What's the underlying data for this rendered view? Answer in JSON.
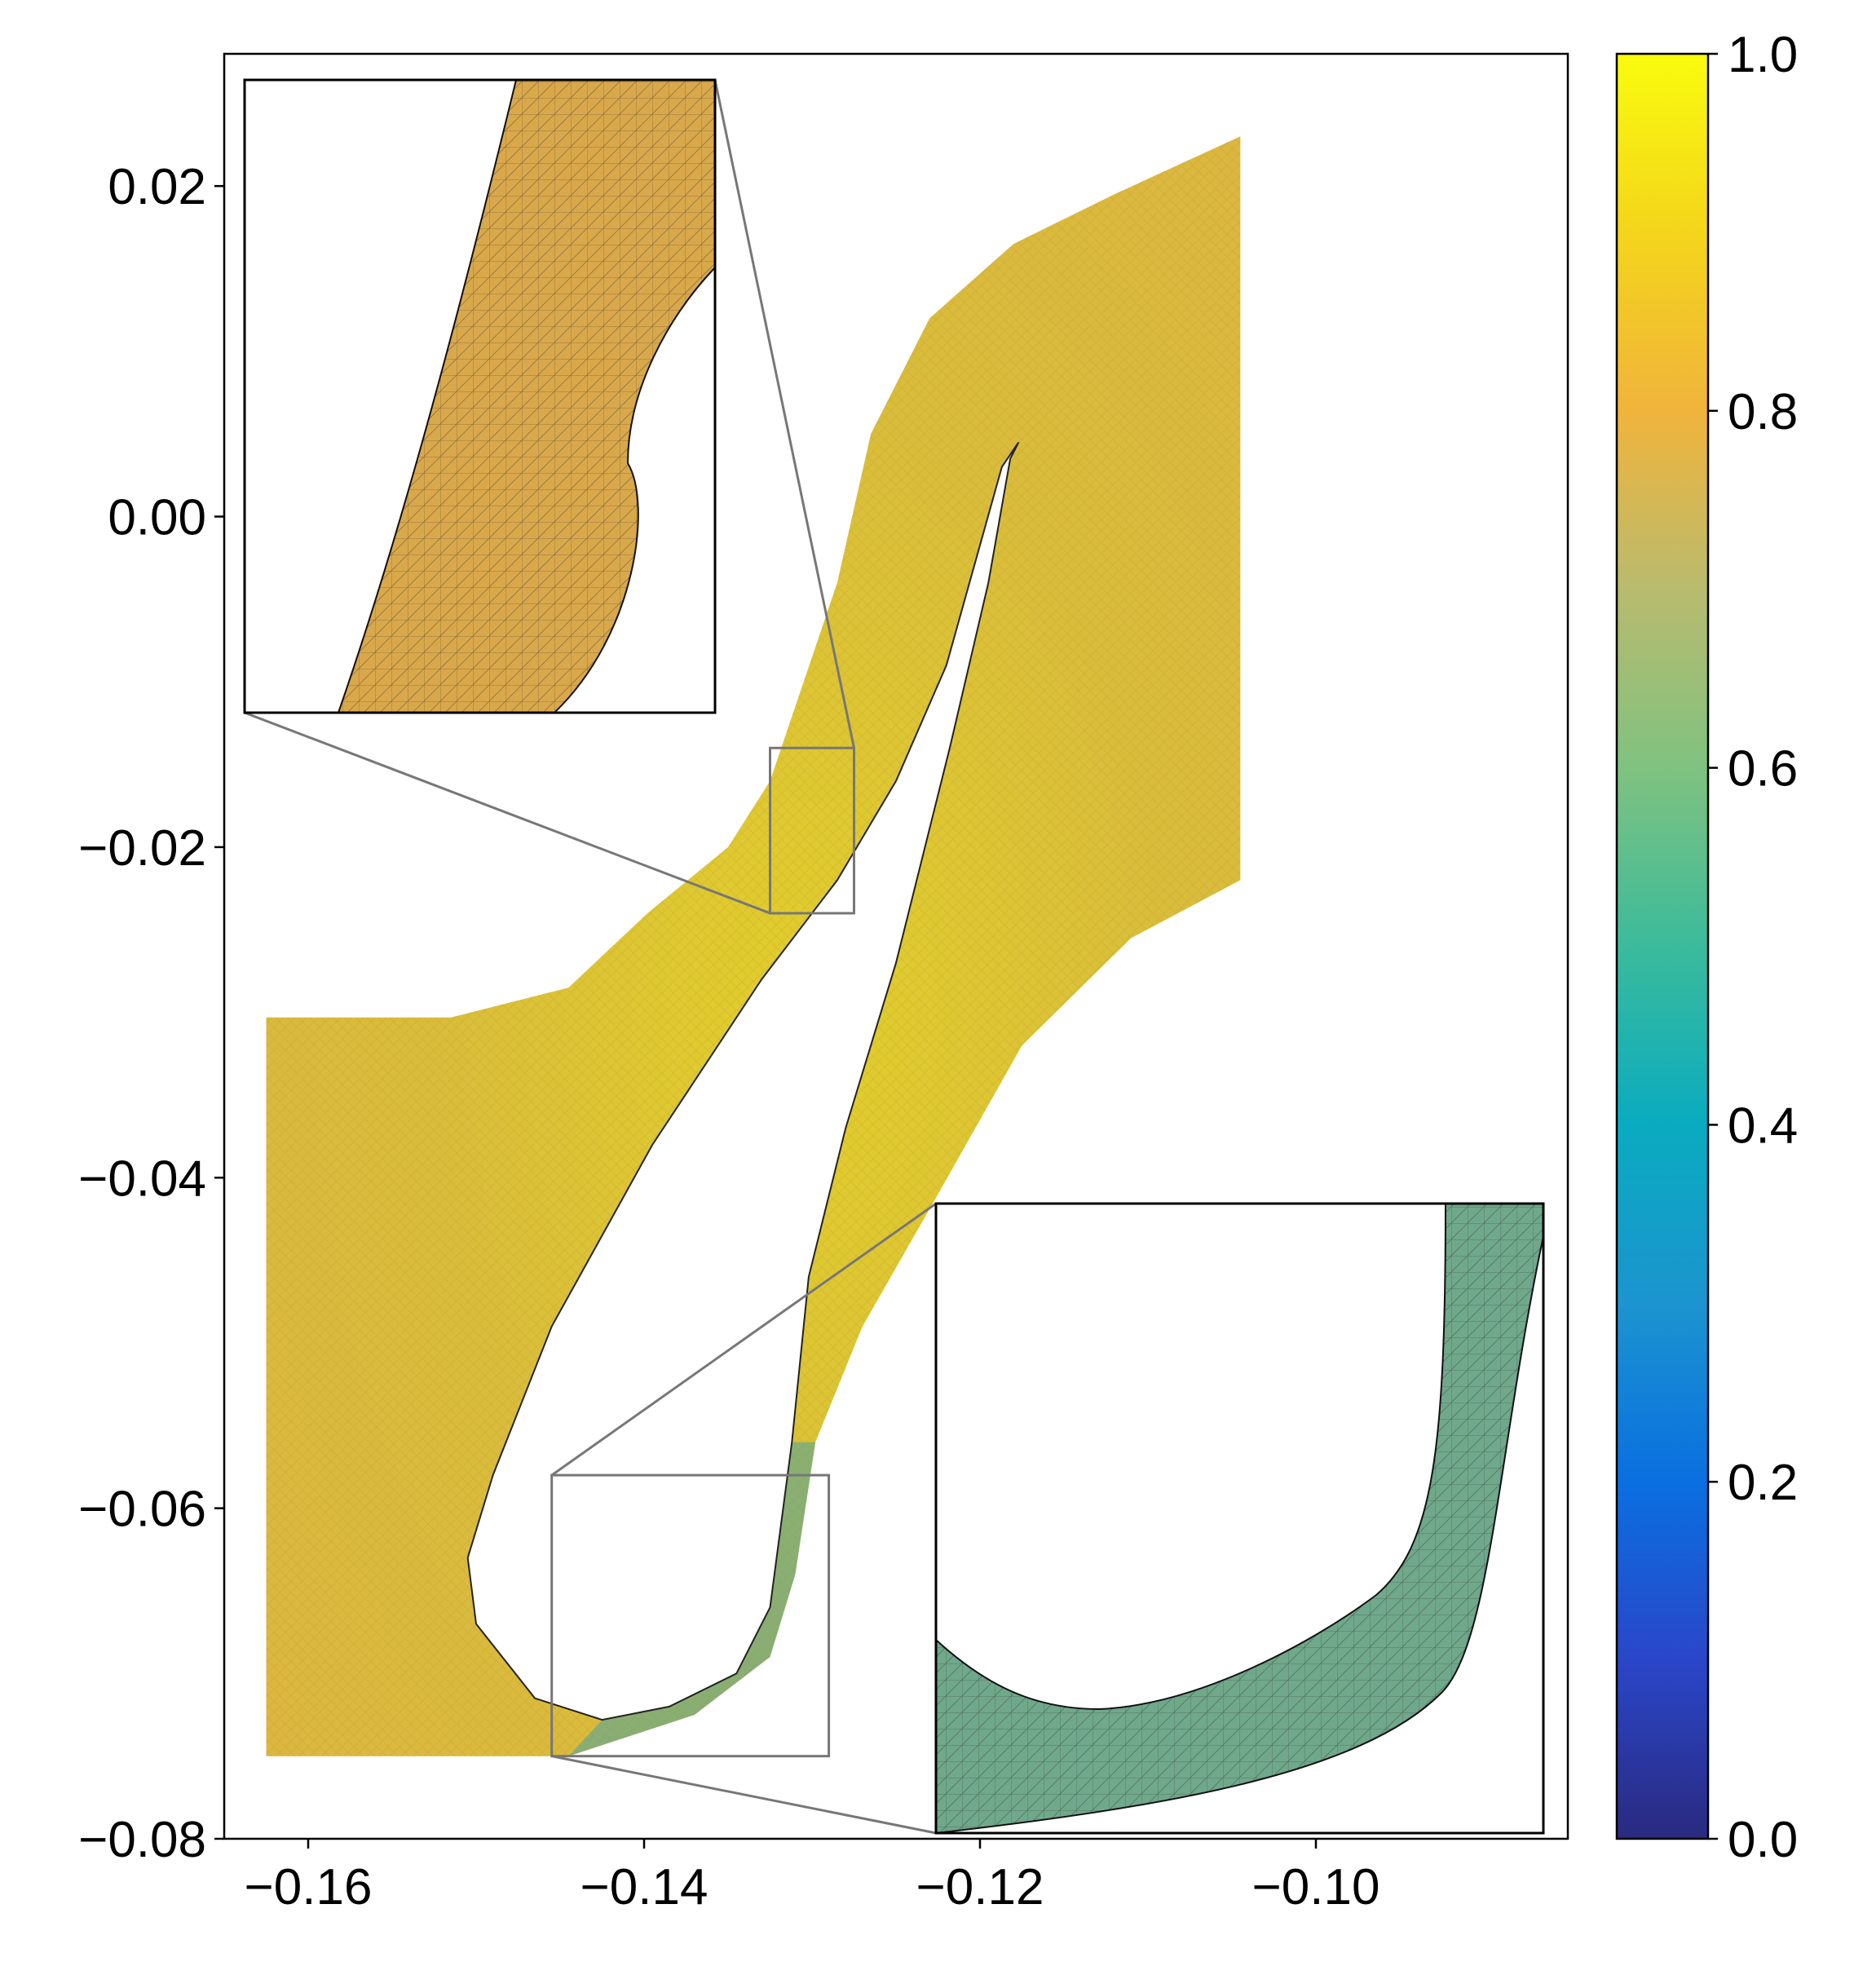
{
  "chart_data": {
    "type": "heatmap",
    "description_kind": "mesh quality field plotted over a triangulated 2D mesh",
    "title": "",
    "xlabel": "",
    "ylabel": "",
    "xlim": [
      -0.165,
      -0.085
    ],
    "ylim": [
      -0.08,
      0.028
    ],
    "x_ticks": [
      -0.16,
      -0.14,
      -0.12,
      -0.1
    ],
    "x_tick_labels": [
      "−0.16",
      "−0.14",
      "−0.12",
      "−0.10"
    ],
    "y_ticks": [
      0.02,
      0.0,
      -0.02,
      -0.04,
      -0.06,
      -0.08
    ],
    "y_tick_labels": [
      "0.02",
      "0.00",
      "−0.02",
      "−0.04",
      "−0.06",
      "−0.08"
    ],
    "colorbar": {
      "range": [
        0.0,
        1.0
      ],
      "ticks": [
        0.0,
        0.2,
        0.4,
        0.6,
        0.8,
        1.0
      ],
      "tick_labels": [
        "0.0",
        "0.2",
        "0.4",
        "0.6",
        "0.8",
        "1.0"
      ],
      "colormap_stops": [
        "#2a2a7f",
        "#2a46c9",
        "#0a6fe0",
        "#1c94cf",
        "#0aabc0",
        "#3bbb9b",
        "#80c280",
        "#b9bb6e",
        "#f0b43c",
        "#f4d51c",
        "#f9fb0e"
      ]
    },
    "domain_outline": {
      "left_channel": [
        [
          -0.1625,
          -0.0303
        ],
        [
          -0.1515,
          -0.0303
        ],
        [
          -0.1445,
          -0.0285
        ],
        [
          -0.1398,
          -0.024
        ],
        [
          -0.135,
          -0.02
        ],
        [
          -0.1325,
          -0.016
        ],
        [
          -0.1305,
          -0.01
        ],
        [
          -0.1285,
          -0.004
        ],
        [
          -0.1265,
          0.005
        ],
        [
          -0.123,
          0.012
        ],
        [
          -0.118,
          0.0165
        ],
        [
          -0.112,
          0.0195
        ],
        [
          -0.1045,
          0.023
        ],
        [
          -0.1045,
          -0.022
        ],
        [
          -0.111,
          -0.0255
        ],
        [
          -0.1175,
          -0.032
        ],
        [
          -0.1225,
          -0.041
        ],
        [
          -0.127,
          -0.049
        ],
        [
          -0.1298,
          -0.056
        ],
        [
          -0.131,
          -0.064
        ],
        [
          -0.1325,
          -0.069
        ],
        [
          -0.137,
          -0.0725
        ],
        [
          -0.1445,
          -0.075
        ],
        [
          -0.1625,
          -0.075
        ]
      ],
      "blade_hole": [
        [
          -0.1177,
          0.0045
        ],
        [
          -0.1187,
          0.003
        ],
        [
          -0.122,
          -0.009
        ],
        [
          -0.125,
          -0.016
        ],
        [
          -0.1285,
          -0.022
        ],
        [
          -0.133,
          -0.028
        ],
        [
          -0.1395,
          -0.038
        ],
        [
          -0.1455,
          -0.049
        ],
        [
          -0.149,
          -0.058
        ],
        [
          -0.1505,
          -0.063
        ],
        [
          -0.15,
          -0.067
        ],
        [
          -0.1465,
          -0.0715
        ],
        [
          -0.1425,
          -0.0728
        ],
        [
          -0.1385,
          -0.072
        ],
        [
          -0.1345,
          -0.07
        ],
        [
          -0.1325,
          -0.066
        ],
        [
          -0.1312,
          -0.056
        ],
        [
          -0.1302,
          -0.046
        ],
        [
          -0.128,
          -0.037
        ],
        [
          -0.125,
          -0.027
        ],
        [
          -0.1218,
          -0.014
        ],
        [
          -0.1195,
          -0.004
        ],
        [
          -0.1182,
          0.0035
        ]
      ]
    },
    "zoom_regions": [
      {
        "name": "upper",
        "x_range": [
          -0.1325,
          -0.1275
        ],
        "y_range": [
          -0.024,
          -0.014
        ],
        "inset": "upper-left"
      },
      {
        "name": "lower",
        "x_range": [
          -0.1455,
          -0.129
        ],
        "y_range": [
          -0.075,
          -0.058
        ],
        "inset": "lower-right"
      }
    ],
    "grid": false,
    "legend": "none"
  }
}
